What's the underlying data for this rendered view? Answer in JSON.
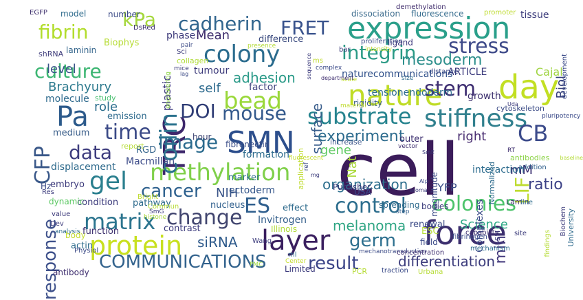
{
  "words": [
    {
      "text": "cell",
      "color": "#3b1c5a"
    },
    {
      "text": "SMN",
      "color": "#2c4e8c"
    },
    {
      "text": "layer",
      "color": "#3a1f5f"
    },
    {
      "text": "force",
      "color": "#3c2f6e"
    },
    {
      "text": "expression",
      "color": "#2a9f8a"
    },
    {
      "text": "nature",
      "color": "#bfdc26"
    },
    {
      "text": "day",
      "color": "#c2df23"
    },
    {
      "text": "TRC",
      "color": "#3d276b"
    },
    {
      "text": "Pa",
      "color": "#2c5a8b"
    },
    {
      "text": "protein",
      "color": "#c8e020"
    },
    {
      "text": "colony",
      "color": "#2b6c8e"
    },
    {
      "text": "stiffness",
      "color": "#31808e"
    },
    {
      "text": "substrate",
      "color": "#25838e"
    },
    {
      "text": "methylation",
      "color": "#80d04b"
    },
    {
      "text": "control",
      "color": "#2d6e8e"
    },
    {
      "text": "gel",
      "color": "#2a7f8e"
    },
    {
      "text": "matrix",
      "color": "#2b748e"
    },
    {
      "text": "change",
      "color": "#41456f"
    },
    {
      "text": "colonies",
      "color": "#4dc36b"
    },
    {
      "text": "COMMUNICATIONS",
      "color": "#33638d"
    },
    {
      "text": "bead",
      "color": "#9ad83a"
    },
    {
      "text": "cadherin",
      "color": "#31658e"
    },
    {
      "text": "FRET",
      "color": "#38528c"
    },
    {
      "text": "stress",
      "color": "#3e4a89"
    },
    {
      "text": "integrin",
      "color": "#2a9a85"
    },
    {
      "text": "culture",
      "color": "#3db673"
    },
    {
      "text": "fibrin",
      "color": "#b2dd2d"
    },
    {
      "text": "kPa",
      "color": "#a6d83e"
    },
    {
      "text": "coilin",
      "color": "#2c738e"
    },
    {
      "text": "time",
      "color": "#3b4a87"
    },
    {
      "text": "image",
      "color": "#2b6b8e"
    },
    {
      "text": "data",
      "color": "#3e3d7e"
    },
    {
      "text": "mouse",
      "color": "#33598c"
    },
    {
      "text": "cancer",
      "color": "#2c5f8d"
    },
    {
      "text": "DOI",
      "color": "#2e3c75"
    },
    {
      "text": "response",
      "color": "#3e518b"
    },
    {
      "text": "CFP",
      "color": "#3a5889"
    },
    {
      "text": "stem",
      "color": "#3f2f72"
    },
    {
      "text": "CB",
      "color": "#3b4a8a"
    },
    {
      "text": "result",
      "color": "#3c4588"
    },
    {
      "text": "germ",
      "color": "#2d6f8e"
    },
    {
      "text": "ES",
      "color": "#2e5e8d"
    },
    {
      "text": "differentiation",
      "color": "#3c3c7c"
    },
    {
      "text": "surface",
      "color": "#3a5e8c"
    },
    {
      "text": "experiment",
      "color": "#2e6c8e"
    },
    {
      "text": "mesoderm",
      "color": "#2d8f8c"
    },
    {
      "text": "LIF",
      "color": "#bedc30"
    },
    {
      "text": "ratio",
      "color": "#3c4186"
    },
    {
      "text": "melanoma",
      "color": "#2ea583"
    },
    {
      "text": "organization",
      "color": "#2e6f8e"
    },
    {
      "text": "siRNA",
      "color": "#2e5a8b"
    },
    {
      "text": "adhesion",
      "color": "#2a9a88"
    },
    {
      "text": "Brachyury",
      "color": "#2d7a8e"
    },
    {
      "text": "level",
      "color": "#3b5489"
    },
    {
      "text": "self",
      "color": "#2d6a8e"
    },
    {
      "text": "role",
      "color": "#2d6f8e"
    },
    {
      "text": "Mean",
      "color": "#3d2c6c"
    },
    {
      "text": "plastic",
      "color": "#3d3a7d"
    },
    {
      "text": "phase",
      "color": "#3a3778"
    },
    {
      "text": "NIH",
      "color": "#3a5589"
    },
    {
      "text": "gene",
      "color": "#5ec962"
    },
    {
      "text": "Nat",
      "color": "#aad83a"
    },
    {
      "text": "YFP",
      "color": "#3b4f88"
    },
    {
      "text": "Science",
      "color": "#2fa987"
    },
    {
      "text": "min",
      "color": "#43397c"
    },
    {
      "text": "mM",
      "color": "#3a2e70"
    },
    {
      "text": "Biol",
      "color": "#353e7a"
    },
    {
      "text": "right",
      "color": "#4a2f72"
    },
    {
      "text": "Cajal",
      "color": "#a0d443"
    },
    {
      "text": "ARTICLE",
      "color": "#3b3a7c"
    },
    {
      "text": "growth",
      "color": "#3c2f6e"
    },
    {
      "text": "tissue",
      "color": "#3b3b7b"
    },
    {
      "text": "dissociation",
      "color": "#3a6a8c"
    },
    {
      "text": "fluorescence",
      "color": "#346b8d"
    },
    {
      "text": "promoter",
      "color": "#c0dc34"
    },
    {
      "text": "demethylation",
      "color": "#3d2a6a"
    },
    {
      "text": "ligand",
      "color": "#3e3a7d"
    },
    {
      "text": "naturecommunications",
      "color": "#2e4f89"
    },
    {
      "text": "tensionendoderm",
      "color": "#2c6d8e"
    },
    {
      "text": "rigidity",
      "color": "#3b5e8c"
    },
    {
      "text": "interaction",
      "color": "#2d6c8e"
    },
    {
      "text": "cytoskeleton",
      "color": "#3b4b86"
    },
    {
      "text": "Biophys",
      "color": "#b7dc36"
    },
    {
      "text": "laminin",
      "color": "#35668c"
    },
    {
      "text": "shRNA",
      "color": "#3e3c7b"
    },
    {
      "text": "EGFP",
      "color": "#3d2f6c"
    },
    {
      "text": "model",
      "color": "#2d6a8c"
    },
    {
      "text": "number",
      "color": "#3b4a86"
    },
    {
      "text": "DsRed",
      "color": "#3c2e6e"
    },
    {
      "text": "molecule",
      "color": "#2e6a8d"
    },
    {
      "text": "study",
      "color": "#4abf71"
    },
    {
      "text": "factor",
      "color": "#41437f"
    },
    {
      "text": "tumour",
      "color": "#3d3b7b"
    },
    {
      "text": "difference",
      "color": "#39497e"
    },
    {
      "text": "emission",
      "color": "#2e6a8d"
    },
    {
      "text": "RGD",
      "color": "#33638c"
    },
    {
      "text": "medium",
      "color": "#3a5e8a"
    },
    {
      "text": "report",
      "color": "#b7dc3a"
    },
    {
      "text": "fibronectin",
      "color": "#3b4e88"
    },
    {
      "text": "hour",
      "color": "#39406f"
    },
    {
      "text": "formation",
      "color": "#2d6b8d"
    },
    {
      "text": "Macmillan",
      "color": "#3b4a88"
    },
    {
      "text": "displacement",
      "color": "#2e6a8c"
    },
    {
      "text": "embryo",
      "color": "#3c3a7b"
    },
    {
      "text": "marker",
      "color": "#30728e"
    },
    {
      "text": "increase",
      "color": "#3b548a"
    },
    {
      "text": "outer",
      "color": "#3a2d6e"
    },
    {
      "text": "application",
      "color": "#c0dc34"
    },
    {
      "text": "magnitude",
      "color": "#3b4a86"
    },
    {
      "text": "Normalized",
      "color": "#2d6b8c"
    },
    {
      "text": "Complexes",
      "color": "#3a4a88"
    },
    {
      "text": "condition",
      "color": "#3c3b7c"
    },
    {
      "text": "pathway",
      "color": "#2d6a8c"
    },
    {
      "text": "nucleus",
      "color": "#2e5e8c"
    },
    {
      "text": "ectoderm",
      "color": "#35578b"
    },
    {
      "text": "Publisher",
      "color": "#3b3a7a"
    },
    {
      "text": "USA",
      "color": "#3a4a8a"
    },
    {
      "text": "spreading",
      "color": "#2e6a8c"
    },
    {
      "text": "bodies",
      "color": "#3a3a7a"
    },
    {
      "text": "Lamin",
      "color": "#3d2d6c"
    },
    {
      "text": "effect",
      "color": "#2e6a8c"
    },
    {
      "text": "Invitrogen",
      "color": "#35608c"
    },
    {
      "text": "Illinois",
      "color": "#b0db38"
    },
    {
      "text": "contrast",
      "color": "#3b3a7c"
    },
    {
      "text": "function",
      "color": "#3a2d6c"
    },
    {
      "text": "actin",
      "color": "#2d6b8c"
    },
    {
      "text": "body",
      "color": "#c4dc2c"
    },
    {
      "text": "renewal",
      "color": "#3b4a86"
    },
    {
      "text": "ESC",
      "color": "#b5dc35"
    },
    {
      "text": "field",
      "color": "#3b4a87"
    },
    {
      "text": "University",
      "color": "#2d6a8c"
    },
    {
      "text": "SM",
      "color": "#3d3a7b"
    },
    {
      "text": "site",
      "color": "#3b3a7a"
    },
    {
      "text": "findings",
      "color": "#b7dc38"
    },
    {
      "text": "Biochem",
      "color": "#3a3a7a"
    },
    {
      "text": "line",
      "color": "#2d6b8c"
    },
    {
      "text": "antibodies",
      "color": "#8cd347"
    },
    {
      "text": "addition",
      "color": "#2e5e8a"
    },
    {
      "text": "baseline",
      "color": "#b5dc3a"
    },
    {
      "text": "RT",
      "color": "#3d2d6e"
    },
    {
      "text": "Hz",
      "color": "#3a4a88"
    },
    {
      "text": "Res",
      "color": "#3b3a7c"
    },
    {
      "text": "Bright",
      "color": "#c0dc34"
    },
    {
      "text": "Commun",
      "color": "#b7dc38"
    },
    {
      "text": "dynamic",
      "color": "#5cc863"
    },
    {
      "text": "value",
      "color": "#3a3778"
    },
    {
      "text": "Dev",
      "color": "#3c3a7b"
    },
    {
      "text": "analysis",
      "color": "#2d6a8c"
    },
    {
      "text": "Physiol",
      "color": "#3b4a86"
    },
    {
      "text": "SmG",
      "color": "#3a3a7a"
    },
    {
      "text": "histone",
      "color": "#a8d83a"
    },
    {
      "text": "step",
      "color": "#35608c"
    },
    {
      "text": "antibody",
      "color": "#3d2d6e"
    },
    {
      "text": "Limited",
      "color": "#3b3a7c"
    },
    {
      "text": "PCR",
      "color": "#b7dc38"
    },
    {
      "text": "traction",
      "color": "#3a4a88"
    },
    {
      "text": "Urbana",
      "color": "#b7dc38"
    },
    {
      "text": "mechanotransduction",
      "color": "#3b4a86"
    },
    {
      "text": "concentration",
      "color": "#3d2d6e"
    },
    {
      "text": "mechanism",
      "color": "#2d6b8c"
    },
    {
      "text": "fibrinogen",
      "color": "#3a4a88"
    },
    {
      "text": "capability",
      "color": "#3d2d6e"
    },
    {
      "text": "Wang",
      "color": "#3b3a7c"
    },
    {
      "text": "ml",
      "color": "#2d6a8c"
    },
    {
      "text": "PMC",
      "color": "#9ad83a"
    },
    {
      "text": "Center",
      "color": "#c4dc2c"
    },
    {
      "text": "Sci",
      "color": "#3b3a7a"
    },
    {
      "text": "pair",
      "color": "#3b4a86"
    },
    {
      "text": "presence",
      "color": "#b5dc3a"
    },
    {
      "text": "collagen",
      "color": "#b0db38"
    },
    {
      "text": "mice",
      "color": "#3a3a7a"
    },
    {
      "text": "engineering",
      "color": "#8cd347"
    },
    {
      "text": "lag",
      "color": "#3b4a86"
    },
    {
      "text": "ms",
      "color": "#c0dc34"
    },
    {
      "text": "complex",
      "color": "#3a4a88"
    },
    {
      "text": "scale",
      "color": "#c0dc34"
    },
    {
      "text": "department",
      "color": "#3d2d6e"
    },
    {
      "text": "sequence",
      "color": "#3b3a7c"
    },
    {
      "text": "size",
      "color": "#2d6a8c"
    },
    {
      "text": "distance",
      "color": "#3b4a86"
    },
    {
      "text": "bar",
      "color": "#3a3a7a"
    },
    {
      "text": "proliferation",
      "color": "#3b4a86"
    },
    {
      "text": "intensity",
      "color": "#c0dc34"
    },
    {
      "text": "development",
      "color": "#3a4a88"
    },
    {
      "text": "Uda",
      "color": "#3b3a7c"
    },
    {
      "text": "pluripotency",
      "color": "#3a4a88"
    },
    {
      "text": "material",
      "color": "#c0dc34"
    },
    {
      "text": "fluorescent",
      "color": "#c4dc2c"
    },
    {
      "text": "ref",
      "color": "#3b4a86"
    },
    {
      "text": "mg",
      "color": "#3a3a7a"
    },
    {
      "text": "vector",
      "color": "#3d2d6e"
    },
    {
      "text": "SmE",
      "color": "#3a3a7a"
    },
    {
      "text": "aroma",
      "color": "#3b3a7c"
    },
    {
      "text": "Alp",
      "color": "#3a4a88"
    }
  ]
}
